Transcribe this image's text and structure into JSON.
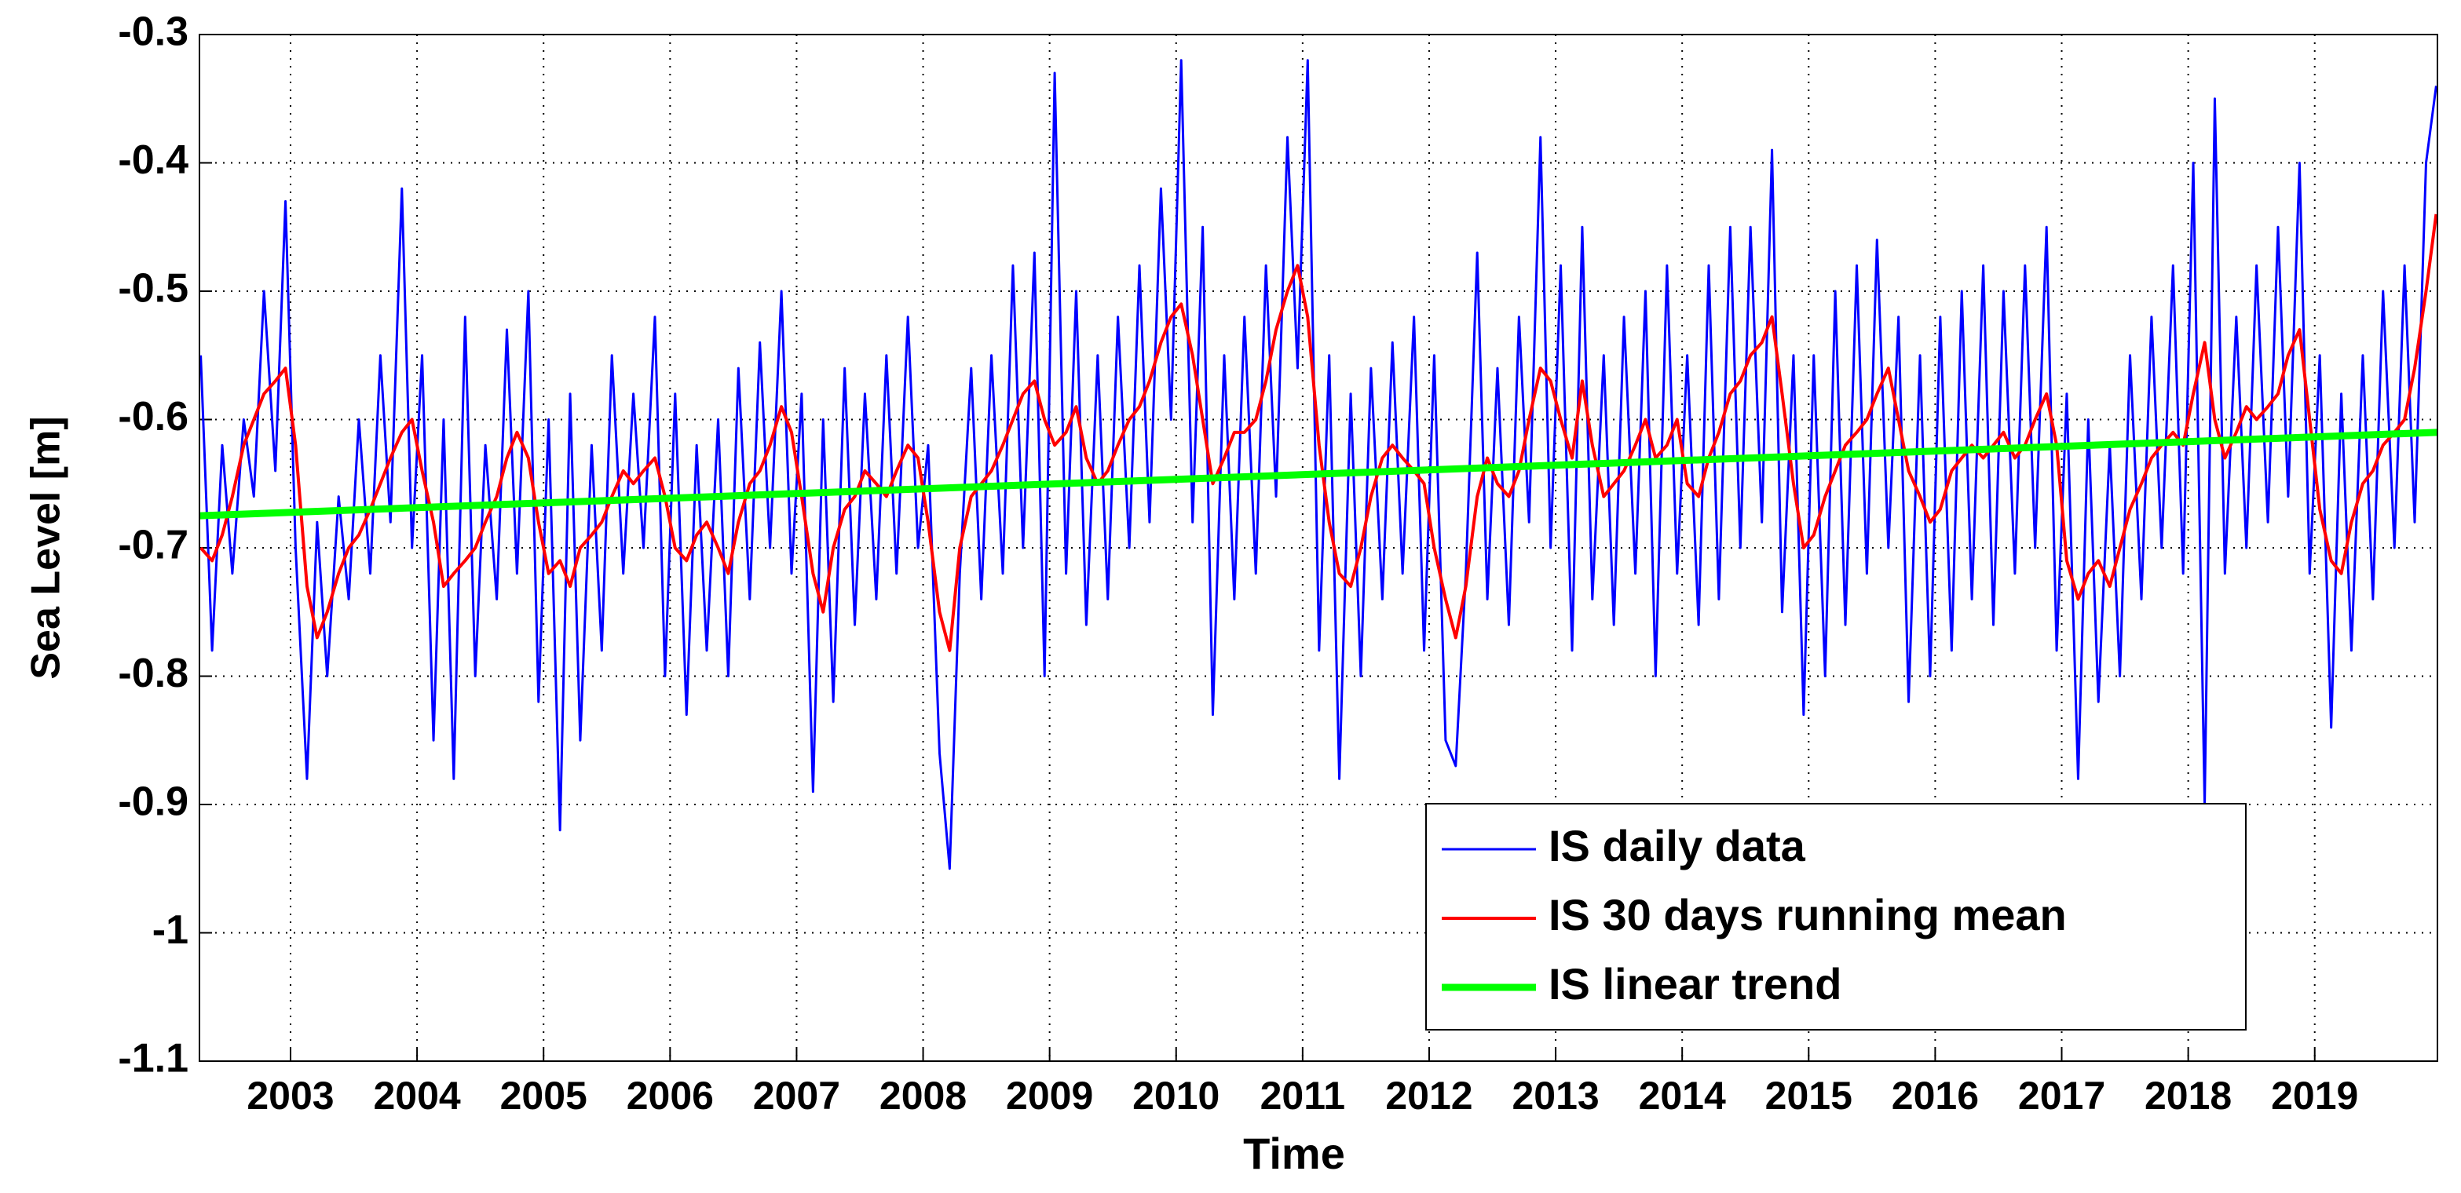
{
  "chart_data": {
    "type": "line",
    "xlabel": "Time",
    "ylabel": "Sea Level [m]",
    "xlim": [
      2002.28,
      2019.97
    ],
    "ylim": [
      -1.1,
      -0.3
    ],
    "xticks": [
      2003,
      2004,
      2005,
      2006,
      2007,
      2008,
      2009,
      2010,
      2011,
      2012,
      2013,
      2014,
      2015,
      2016,
      2017,
      2018,
      2019
    ],
    "yticks": [
      -1.1,
      -1,
      -0.9,
      -0.8,
      -0.7,
      -0.6,
      -0.5,
      -0.4,
      -0.3
    ],
    "grid": true,
    "legend": "lower right",
    "x": [
      2002.29,
      2002.38,
      2002.46,
      2002.54,
      2002.63,
      2002.71,
      2002.79,
      2002.88,
      2002.96,
      2003.04,
      2003.13,
      2003.21,
      2003.29,
      2003.38,
      2003.46,
      2003.54,
      2003.63,
      2003.71,
      2003.79,
      2003.88,
      2003.96,
      2004.04,
      2004.13,
      2004.21,
      2004.29,
      2004.38,
      2004.46,
      2004.54,
      2004.63,
      2004.71,
      2004.79,
      2004.88,
      2004.96,
      2005.04,
      2005.13,
      2005.21,
      2005.29,
      2005.38,
      2005.46,
      2005.54,
      2005.63,
      2005.71,
      2005.79,
      2005.88,
      2005.96,
      2006.04,
      2006.13,
      2006.21,
      2006.29,
      2006.38,
      2006.46,
      2006.54,
      2006.63,
      2006.71,
      2006.79,
      2006.88,
      2006.96,
      2007.04,
      2007.13,
      2007.21,
      2007.29,
      2007.38,
      2007.46,
      2007.54,
      2007.63,
      2007.71,
      2007.79,
      2007.88,
      2007.96,
      2008.04,
      2008.13,
      2008.21,
      2008.29,
      2008.38,
      2008.46,
      2008.54,
      2008.63,
      2008.71,
      2008.79,
      2008.88,
      2008.96,
      2009.04,
      2009.13,
      2009.21,
      2009.29,
      2009.38,
      2009.46,
      2009.54,
      2009.63,
      2009.71,
      2009.79,
      2009.88,
      2009.96,
      2010.04,
      2010.13,
      2010.21,
      2010.29,
      2010.38,
      2010.46,
      2010.54,
      2010.63,
      2010.71,
      2010.79,
      2010.88,
      2010.96,
      2011.04,
      2011.13,
      2011.21,
      2011.29,
      2011.38,
      2011.46,
      2011.54,
      2011.63,
      2011.71,
      2011.79,
      2011.88,
      2011.96,
      2012.04,
      2012.13,
      2012.21,
      2012.29,
      2012.38,
      2012.46,
      2012.54,
      2012.63,
      2012.71,
      2012.79,
      2012.88,
      2012.96,
      2013.04,
      2013.13,
      2013.21,
      2013.29,
      2013.38,
      2013.46,
      2013.54,
      2013.63,
      2013.71,
      2013.79,
      2013.88,
      2013.96,
      2014.04,
      2014.13,
      2014.21,
      2014.29,
      2014.38,
      2014.46,
      2014.54,
      2014.63,
      2014.71,
      2014.79,
      2014.88,
      2014.96,
      2015.04,
      2015.13,
      2015.21,
      2015.29,
      2015.38,
      2015.46,
      2015.54,
      2015.63,
      2015.71,
      2015.79,
      2015.88,
      2015.96,
      2016.04,
      2016.13,
      2016.21,
      2016.29,
      2016.38,
      2016.46,
      2016.54,
      2016.63,
      2016.71,
      2016.79,
      2016.88,
      2016.96,
      2017.04,
      2017.13,
      2017.21,
      2017.29,
      2017.38,
      2017.46,
      2017.54,
      2017.63,
      2017.71,
      2017.79,
      2017.88,
      2017.96,
      2018.04,
      2018.13,
      2018.21,
      2018.29,
      2018.38,
      2018.46,
      2018.54,
      2018.63,
      2018.71,
      2018.79,
      2018.88,
      2018.96,
      2019.04,
      2019.13,
      2019.21,
      2019.29,
      2019.38,
      2019.46,
      2019.54,
      2019.63,
      2019.71,
      2019.79,
      2019.88,
      2019.96
    ],
    "series": [
      {
        "name": "IS daily data",
        "color": "#0000ff",
        "values": [
          -0.55,
          -0.78,
          -0.62,
          -0.72,
          -0.6,
          -0.66,
          -0.5,
          -0.64,
          -0.43,
          -0.7,
          -0.88,
          -0.68,
          -0.8,
          -0.66,
          -0.74,
          -0.6,
          -0.72,
          -0.55,
          -0.68,
          -0.42,
          -0.7,
          -0.55,
          -0.85,
          -0.6,
          -0.88,
          -0.52,
          -0.8,
          -0.62,
          -0.74,
          -0.53,
          -0.72,
          -0.5,
          -0.82,
          -0.6,
          -0.92,
          -0.58,
          -0.85,
          -0.62,
          -0.78,
          -0.55,
          -0.72,
          -0.58,
          -0.7,
          -0.52,
          -0.8,
          -0.58,
          -0.83,
          -0.62,
          -0.78,
          -0.6,
          -0.8,
          -0.56,
          -0.74,
          -0.54,
          -0.7,
          -0.5,
          -0.72,
          -0.58,
          -0.89,
          -0.6,
          -0.82,
          -0.56,
          -0.76,
          -0.58,
          -0.74,
          -0.55,
          -0.72,
          -0.52,
          -0.7,
          -0.62,
          -0.86,
          -0.95,
          -0.72,
          -0.56,
          -0.74,
          -0.55,
          -0.72,
          -0.48,
          -0.7,
          -0.47,
          -0.8,
          -0.33,
          -0.72,
          -0.5,
          -0.76,
          -0.55,
          -0.74,
          -0.52,
          -0.7,
          -0.48,
          -0.68,
          -0.42,
          -0.6,
          -0.32,
          -0.68,
          -0.45,
          -0.83,
          -0.55,
          -0.74,
          -0.52,
          -0.72,
          -0.48,
          -0.66,
          -0.38,
          -0.56,
          -0.32,
          -0.78,
          -0.55,
          -0.88,
          -0.58,
          -0.8,
          -0.56,
          -0.74,
          -0.54,
          -0.72,
          -0.52,
          -0.78,
          -0.55,
          -0.85,
          -0.87,
          -0.72,
          -0.47,
          -0.74,
          -0.56,
          -0.76,
          -0.52,
          -0.68,
          -0.38,
          -0.7,
          -0.48,
          -0.78,
          -0.45,
          -0.74,
          -0.55,
          -0.76,
          -0.52,
          -0.72,
          -0.5,
          -0.8,
          -0.48,
          -0.72,
          -0.55,
          -0.76,
          -0.48,
          -0.74,
          -0.45,
          -0.7,
          -0.45,
          -0.68,
          -0.39,
          -0.75,
          -0.55,
          -0.83,
          -0.55,
          -0.8,
          -0.5,
          -0.76,
          -0.48,
          -0.72,
          -0.46,
          -0.7,
          -0.52,
          -0.82,
          -0.55,
          -0.8,
          -0.52,
          -0.78,
          -0.5,
          -0.74,
          -0.48,
          -0.76,
          -0.5,
          -0.72,
          -0.48,
          -0.7,
          -0.45,
          -0.78,
          -0.58,
          -0.88,
          -0.6,
          -0.82,
          -0.62,
          -0.8,
          -0.55,
          -0.74,
          -0.52,
          -0.7,
          -0.48,
          -0.72,
          -0.4,
          -0.9,
          -0.35,
          -0.72,
          -0.52,
          -0.7,
          -0.48,
          -0.68,
          -0.45,
          -0.66,
          -0.4,
          -0.72,
          -0.55,
          -0.84,
          -0.58,
          -0.78,
          -0.55,
          -0.74,
          -0.5,
          -0.7,
          -0.48,
          -0.68,
          -0.4,
          -0.34
        ]
      },
      {
        "name": "IS 30 days running mean",
        "color": "#ff0000",
        "values": [
          -0.7,
          -0.71,
          -0.69,
          -0.66,
          -0.62,
          -0.6,
          -0.58,
          -0.57,
          -0.56,
          -0.62,
          -0.73,
          -0.77,
          -0.75,
          -0.72,
          -0.7,
          -0.69,
          -0.67,
          -0.65,
          -0.63,
          -0.61,
          -0.6,
          -0.64,
          -0.68,
          -0.73,
          -0.72,
          -0.71,
          -0.7,
          -0.68,
          -0.66,
          -0.63,
          -0.61,
          -0.63,
          -0.68,
          -0.72,
          -0.71,
          -0.73,
          -0.7,
          -0.69,
          -0.68,
          -0.66,
          -0.64,
          -0.65,
          -0.64,
          -0.63,
          -0.66,
          -0.7,
          -0.71,
          -0.69,
          -0.68,
          -0.7,
          -0.72,
          -0.68,
          -0.65,
          -0.64,
          -0.62,
          -0.59,
          -0.61,
          -0.66,
          -0.72,
          -0.75,
          -0.7,
          -0.67,
          -0.66,
          -0.64,
          -0.65,
          -0.66,
          -0.64,
          -0.62,
          -0.63,
          -0.68,
          -0.75,
          -0.78,
          -0.7,
          -0.66,
          -0.65,
          -0.64,
          -0.62,
          -0.6,
          -0.58,
          -0.57,
          -0.6,
          -0.62,
          -0.61,
          -0.59,
          -0.63,
          -0.65,
          -0.64,
          -0.62,
          -0.6,
          -0.59,
          -0.57,
          -0.54,
          -0.52,
          -0.51,
          -0.55,
          -0.6,
          -0.65,
          -0.63,
          -0.61,
          -0.61,
          -0.6,
          -0.57,
          -0.53,
          -0.5,
          -0.48,
          -0.52,
          -0.62,
          -0.68,
          -0.72,
          -0.73,
          -0.7,
          -0.66,
          -0.63,
          -0.62,
          -0.63,
          -0.64,
          -0.65,
          -0.7,
          -0.74,
          -0.77,
          -0.73,
          -0.66,
          -0.63,
          -0.65,
          -0.66,
          -0.64,
          -0.6,
          -0.56,
          -0.57,
          -0.6,
          -0.63,
          -0.57,
          -0.62,
          -0.66,
          -0.65,
          -0.64,
          -0.62,
          -0.6,
          -0.63,
          -0.62,
          -0.6,
          -0.65,
          -0.66,
          -0.63,
          -0.61,
          -0.58,
          -0.57,
          -0.55,
          -0.54,
          -0.52,
          -0.58,
          -0.65,
          -0.7,
          -0.69,
          -0.66,
          -0.64,
          -0.62,
          -0.61,
          -0.6,
          -0.58,
          -0.56,
          -0.6,
          -0.64,
          -0.66,
          -0.68,
          -0.67,
          -0.64,
          -0.63,
          -0.62,
          -0.63,
          -0.62,
          -0.61,
          -0.63,
          -0.62,
          -0.6,
          -0.58,
          -0.62,
          -0.71,
          -0.74,
          -0.72,
          -0.71,
          -0.73,
          -0.7,
          -0.67,
          -0.65,
          -0.63,
          -0.62,
          -0.61,
          -0.62,
          -0.58,
          -0.54,
          -0.6,
          -0.63,
          -0.61,
          -0.59,
          -0.6,
          -0.59,
          -0.58,
          -0.55,
          -0.53,
          -0.6,
          -0.67,
          -0.71,
          -0.72,
          -0.68,
          -0.65,
          -0.64,
          -0.62,
          -0.61,
          -0.6,
          -0.56,
          -0.5,
          -0.44
        ]
      },
      {
        "name": "IS linear trend",
        "color": "#00ff00",
        "x": [
          2002.28,
          2019.97
        ],
        "values": [
          -0.675,
          -0.61
        ]
      }
    ]
  }
}
